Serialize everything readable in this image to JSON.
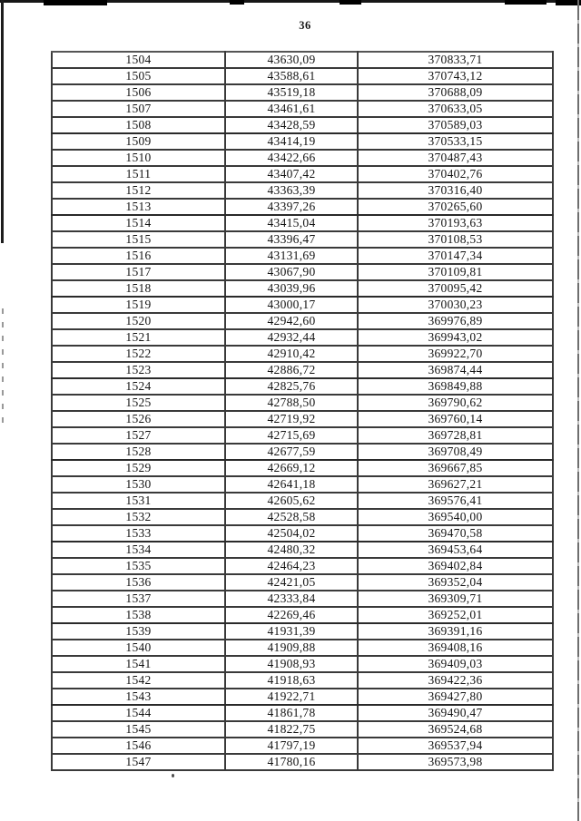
{
  "page": {
    "page_number": "36"
  },
  "table": {
    "rows": [
      [
        "1504",
        "43630,09",
        "370833,71"
      ],
      [
        "1505",
        "43588,61",
        "370743,12"
      ],
      [
        "1506",
        "43519,18",
        "370688,09"
      ],
      [
        "1507",
        "43461,61",
        "370633,05"
      ],
      [
        "1508",
        "43428,59",
        "370589,03"
      ],
      [
        "1509",
        "43414,19",
        "370533,15"
      ],
      [
        "1510",
        "43422,66",
        "370487,43"
      ],
      [
        "1511",
        "43407,42",
        "370402,76"
      ],
      [
        "1512",
        "43363,39",
        "370316,40"
      ],
      [
        "1513",
        "43397,26",
        "370265,60"
      ],
      [
        "1514",
        "43415,04",
        "370193,63"
      ],
      [
        "1515",
        "43396,47",
        "370108,53"
      ],
      [
        "1516",
        "43131,69",
        "370147,34"
      ],
      [
        "1517",
        "43067,90",
        "370109,81"
      ],
      [
        "1518",
        "43039,96",
        "370095,42"
      ],
      [
        "1519",
        "43000,17",
        "370030,23"
      ],
      [
        "1520",
        "42942,60",
        "369976,89"
      ],
      [
        "1521",
        "42932,44",
        "369943,02"
      ],
      [
        "1522",
        "42910,42",
        "369922,70"
      ],
      [
        "1523",
        "42886,72",
        "369874,44"
      ],
      [
        "1524",
        "42825,76",
        "369849,88"
      ],
      [
        "1525",
        "42788,50",
        "369790,62"
      ],
      [
        "1526",
        "42719,92",
        "369760,14"
      ],
      [
        "1527",
        "42715,69",
        "369728,81"
      ],
      [
        "1528",
        "42677,59",
        "369708,49"
      ],
      [
        "1529",
        "42669,12",
        "369667,85"
      ],
      [
        "1530",
        "42641,18",
        "369627,21"
      ],
      [
        "1531",
        "42605,62",
        "369576,41"
      ],
      [
        "1532",
        "42528,58",
        "369540,00"
      ],
      [
        "1533",
        "42504,02",
        "369470,58"
      ],
      [
        "1534",
        "42480,32",
        "369453,64"
      ],
      [
        "1535",
        "42464,23",
        "369402,84"
      ],
      [
        "1536",
        "42421,05",
        "369352,04"
      ],
      [
        "1537",
        "42333,84",
        "369309,71"
      ],
      [
        "1538",
        "42269,46",
        "369252,01"
      ],
      [
        "1539",
        "41931,39",
        "369391,16"
      ],
      [
        "1540",
        "41909,88",
        "369408,16"
      ],
      [
        "1541",
        "41908,93",
        "369409,03"
      ],
      [
        "1542",
        "41918,63",
        "369422,36"
      ],
      [
        "1543",
        "41922,71",
        "369427,80"
      ],
      [
        "1544",
        "41861,78",
        "369490,47"
      ],
      [
        "1545",
        "41822,75",
        "369524,68"
      ],
      [
        "1546",
        "41797,19",
        "369537,94"
      ],
      [
        "1547",
        "41780,16",
        "369573,98"
      ]
    ]
  }
}
